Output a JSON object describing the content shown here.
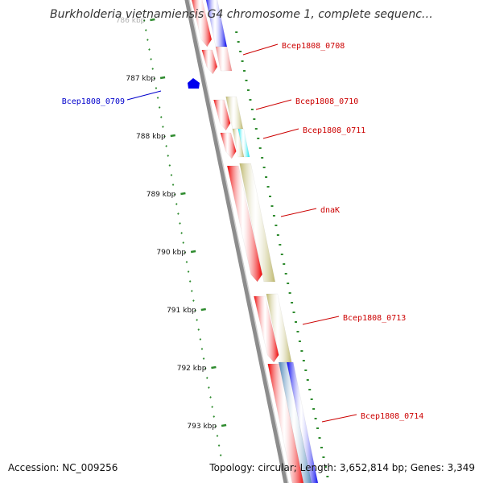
{
  "title": "Burkholderia vietnamiensis G4 chromosome 1, complete sequenc…",
  "accession": "Accession: NC_009256",
  "summary": "Topology: circular; Length: 3,652,814 bp; Genes: 3,349",
  "colors": {
    "forward": "#ee0000",
    "reverse_olive": "#bdb76b",
    "reverse_blue": "#0000ee",
    "pink": "#f08080",
    "cyan": "#00e5ee",
    "steel": "#4682b4",
    "backbone": "#8c8c8c",
    "tick": "#2e8b2e",
    "label_red": "#cc0000",
    "label_blue": "#0000cc"
  },
  "ticks": [
    {
      "label": "786 kbp"
    },
    {
      "label": "787 kbp"
    },
    {
      "label": "788 kbp"
    },
    {
      "label": "789 kbp"
    },
    {
      "label": "790 kbp"
    },
    {
      "label": "791 kbp"
    },
    {
      "label": "792 kbp"
    },
    {
      "label": "793 kbp"
    }
  ],
  "gene_labels": [
    {
      "name": "Bcep1808_0708",
      "color": "label_red"
    },
    {
      "name": "Bcep1808_0709",
      "color": "label_blue"
    },
    {
      "name": "Bcep1808_0710",
      "color": "label_red"
    },
    {
      "name": "Bcep1808_0711",
      "color": "label_red"
    },
    {
      "name": "dnaK",
      "color": "label_red"
    },
    {
      "name": "Bcep1808_0713",
      "color": "label_red"
    },
    {
      "name": "Bcep1808_0714",
      "color": "label_red"
    }
  ]
}
